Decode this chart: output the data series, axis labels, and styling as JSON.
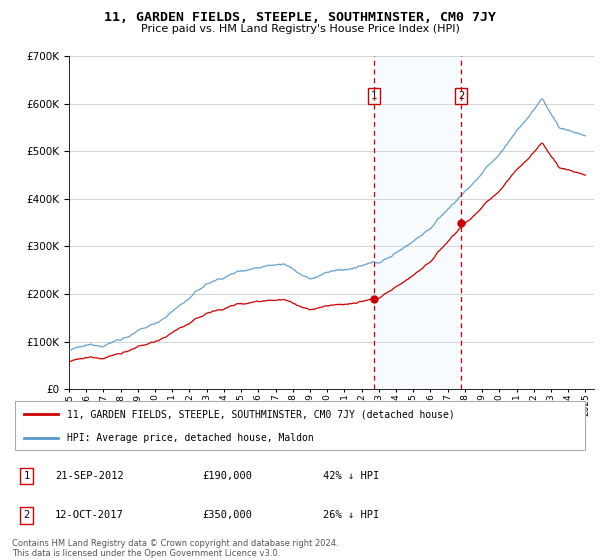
{
  "title": "11, GARDEN FIELDS, STEEPLE, SOUTHMINSTER, CM0 7JY",
  "subtitle": "Price paid vs. HM Land Registry's House Price Index (HPI)",
  "hpi_label": "HPI: Average price, detached house, Maldon",
  "price_label": "11, GARDEN FIELDS, STEEPLE, SOUTHMINSTER, CM0 7JY (detached house)",
  "sale1_date": "21-SEP-2012",
  "sale1_price": 190000,
  "sale1_hpi_pct": "42% ↓ HPI",
  "sale2_date": "12-OCT-2017",
  "sale2_price": 350000,
  "sale2_hpi_pct": "26% ↓ HPI",
  "footer": "Contains HM Land Registry data © Crown copyright and database right 2024.\nThis data is licensed under the Open Government Licence v3.0.",
  "ylim": [
    0,
    700000
  ],
  "yticks": [
    0,
    100000,
    200000,
    300000,
    400000,
    500000,
    600000,
    700000
  ],
  "hpi_color": "#5599cc",
  "price_color": "#cc0000",
  "vline_color": "#cc0000",
  "shade_color": "#ddeeff",
  "marker1_x": 2012.72,
  "marker2_x": 2017.78,
  "xmin": 1995,
  "xmax": 2025
}
